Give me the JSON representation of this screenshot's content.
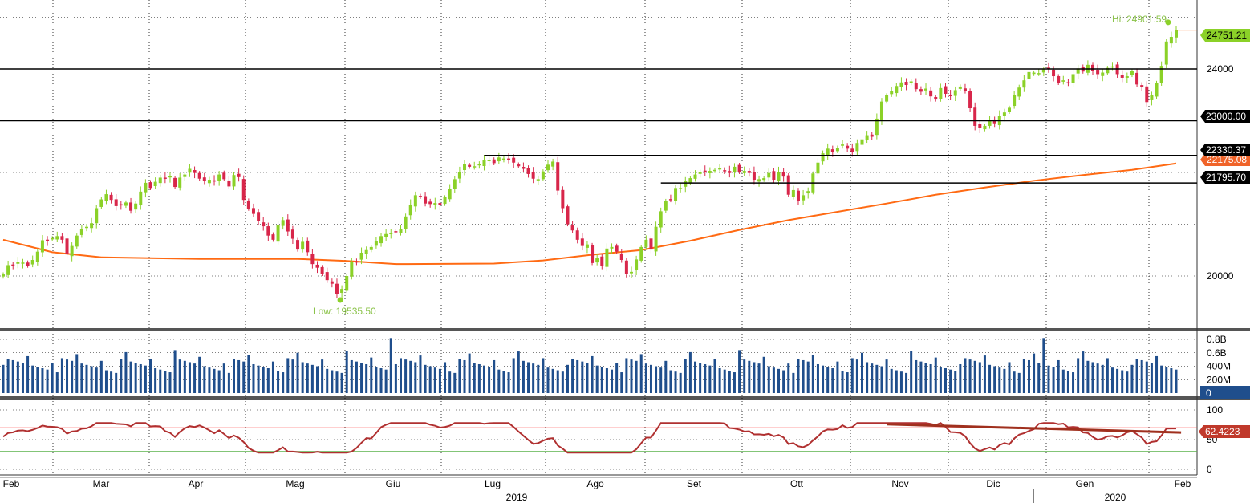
{
  "chart_data": {
    "type": "candlestick",
    "x_axis": {
      "months": [
        "Feb",
        "Mar",
        "Apr",
        "Mag",
        "Giu",
        "Lug",
        "Ago",
        "Set",
        "Ott",
        "Nov",
        "Dic",
        "Gen",
        "Feb"
      ],
      "years": [
        "2019",
        "2020"
      ]
    },
    "price_panel": {
      "ylim": [
        19000,
        25500
      ],
      "y_ticks": [
        "24000",
        "20000"
      ],
      "grid": true,
      "hi_label": "Hi: 24901.59",
      "hi_value": 24901.59,
      "low_label": "Low: 19535.50",
      "low_value": 19535.5,
      "last_price": "24751.21",
      "last_price_value": 24751.21,
      "ma_last_label": "22175.08",
      "horizontal_levels": [
        {
          "label": "24000",
          "value": 24000
        },
        {
          "label": "23000.00",
          "value": 23000
        },
        {
          "label": "22330.37",
          "value": 22330.37
        },
        {
          "label": "21795.70",
          "value": 21795.7
        }
      ],
      "candles_close": [
        20030,
        20210,
        20200,
        20270,
        20260,
        20200,
        20310,
        20470,
        20690,
        20680,
        20730,
        20770,
        20700,
        20420,
        20580,
        20780,
        20900,
        20950,
        21020,
        21310,
        21480,
        21580,
        21470,
        21350,
        21380,
        21420,
        21260,
        21400,
        21630,
        21800,
        21700,
        21820,
        21900,
        21880,
        21930,
        21720,
        21900,
        21960,
        22070,
        21990,
        21880,
        21830,
        21860,
        21830,
        21960,
        21870,
        21730,
        21950,
        21910,
        21470,
        21300,
        21200,
        21060,
        20960,
        20780,
        20700,
        20980,
        21080,
        20860,
        20720,
        20510,
        20660,
        20460,
        20230,
        20160,
        20040,
        19920,
        19850,
        19650,
        19750,
        20000,
        20270,
        20280,
        20450,
        20500,
        20560,
        20670,
        20770,
        20810,
        20830,
        20860,
        20900,
        21150,
        21380,
        21560,
        21530,
        21400,
        21390,
        21410,
        21370,
        21520,
        21690,
        21870,
        22010,
        22170,
        22110,
        22120,
        22160,
        22240,
        22240,
        22180,
        22290,
        22270,
        22260,
        22190,
        22120,
        22070,
        21970,
        21880,
        21870,
        22020,
        22150,
        22210,
        21650,
        21310,
        21000,
        20880,
        20700,
        20580,
        20610,
        20250,
        20340,
        20200,
        20530,
        20560,
        20470,
        20310,
        20040,
        20080,
        20320,
        20560,
        20700,
        20510,
        20950,
        21250,
        21450,
        21480,
        21700,
        21700,
        21840,
        21890,
        21960,
        22000,
        22010,
        22030,
        22050,
        22080,
        22040,
        21990,
        22110,
        22010,
        22030,
        21990,
        21860,
        21870,
        21890,
        21990,
        21860,
        22010,
        21920,
        21570,
        21660,
        21450,
        21560,
        21640,
        21980,
        22190,
        22370,
        22460,
        22400,
        22480,
        22540,
        22460,
        22390,
        22570,
        22640,
        22720,
        22690,
        23040,
        23370,
        23490,
        23570,
        23670,
        23740,
        23690,
        23760,
        23610,
        23560,
        23620,
        23470,
        23410,
        23630,
        23520,
        23480,
        23590,
        23660,
        23580,
        23240,
        22900,
        22860,
        22900,
        23000,
        22950,
        23100,
        23160,
        23250,
        23490,
        23640,
        23780,
        23940,
        23930,
        23920,
        23990,
        24010,
        23860,
        23730,
        23780,
        23740,
        23900,
        24010,
        23950,
        24080,
        23960,
        23900,
        23930,
        24020,
        24050,
        23900,
        23830,
        23860,
        23960,
        23700,
        23650,
        23360,
        23490,
        23730,
        24060,
        24530,
        24620,
        24751
      ],
      "moving_average": [
        [
          0,
          20700
        ],
        [
          10,
          20460
        ],
        [
          20,
          20360
        ],
        [
          40,
          20330
        ],
        [
          60,
          20330
        ],
        [
          70,
          20290
        ],
        [
          80,
          20230
        ],
        [
          100,
          20240
        ],
        [
          110,
          20300
        ],
        [
          120,
          20410
        ],
        [
          130,
          20500
        ],
        [
          140,
          20680
        ],
        [
          150,
          20890
        ],
        [
          160,
          21080
        ],
        [
          170,
          21240
        ],
        [
          180,
          21400
        ],
        [
          190,
          21570
        ],
        [
          200,
          21710
        ],
        [
          210,
          21840
        ],
        [
          220,
          21950
        ],
        [
          230,
          22050
        ],
        [
          239,
          22175
        ]
      ],
      "trendlines": [
        {
          "value": 22330.37,
          "start_index": 98,
          "end_index": 239
        },
        {
          "value": 21795.7,
          "start_index": 134,
          "end_index": 239
        }
      ]
    },
    "volume_panel": {
      "ylim": [
        0,
        0.9
      ],
      "y_ticks": [
        "0.8B",
        "0.6B",
        "400M",
        "200M",
        "0"
      ],
      "last_label": "0",
      "color": "#1f4e8c"
    },
    "rsi_panel": {
      "ylim": [
        0,
        100
      ],
      "y_ticks": [
        "100",
        "50",
        "0"
      ],
      "upper_line": 70,
      "lower_line": 30,
      "last_label": "62.4223",
      "last_value": 62.4223,
      "trendline": [
        [
          180,
          76
        ],
        [
          240,
          62
        ]
      ],
      "color": "#b03030"
    },
    "colors": {
      "up": "#8bd128",
      "down": "#d8264a",
      "ma": "#ff6a13",
      "volume": "#1f4e8c",
      "rsi": "#b03030",
      "rsi_upper": "#ff4040",
      "rsi_lower": "#5ab24a",
      "hi_lo_text": "#8bc34a",
      "last_badge": "#8bd128",
      "ma_badge": "#f0642a",
      "separator": "#555555"
    }
  }
}
